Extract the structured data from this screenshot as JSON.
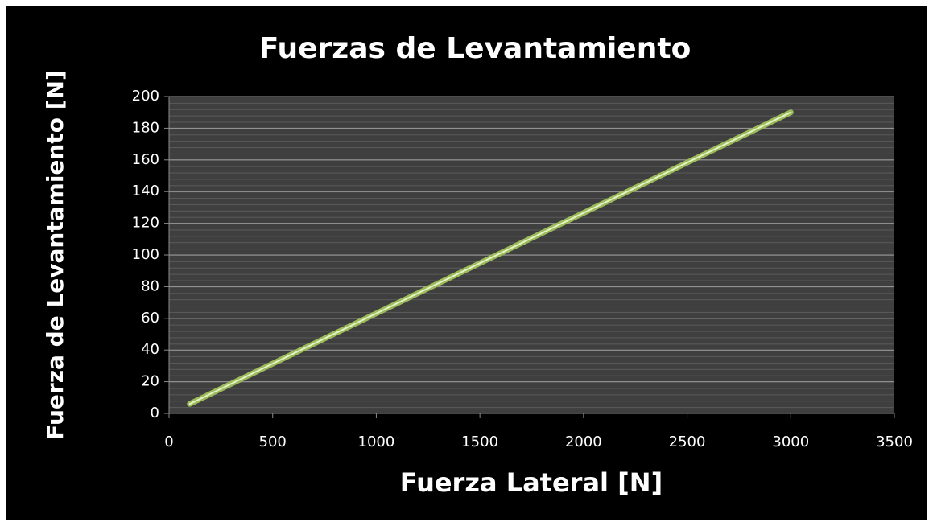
{
  "chart_data": {
    "type": "scatter",
    "title": "Fuerzas de Levantamiento",
    "x_label": "Fuerza Lateral [N]",
    "y_label": "Fuerza de Levantamiento [N]",
    "x": [
      100,
      3000
    ],
    "values": [
      6,
      190
    ],
    "color": "#9bbb59",
    "lines": true,
    "xlim": [
      0,
      3500
    ],
    "xticks": [
      0,
      500,
      1000,
      1500,
      2000,
      2500,
      3000,
      3500
    ],
    "ylim": [
      0,
      200
    ],
    "yticks": [
      0,
      20,
      40,
      60,
      80,
      100,
      120,
      140,
      160,
      180,
      200
    ],
    "grid": true
  }
}
